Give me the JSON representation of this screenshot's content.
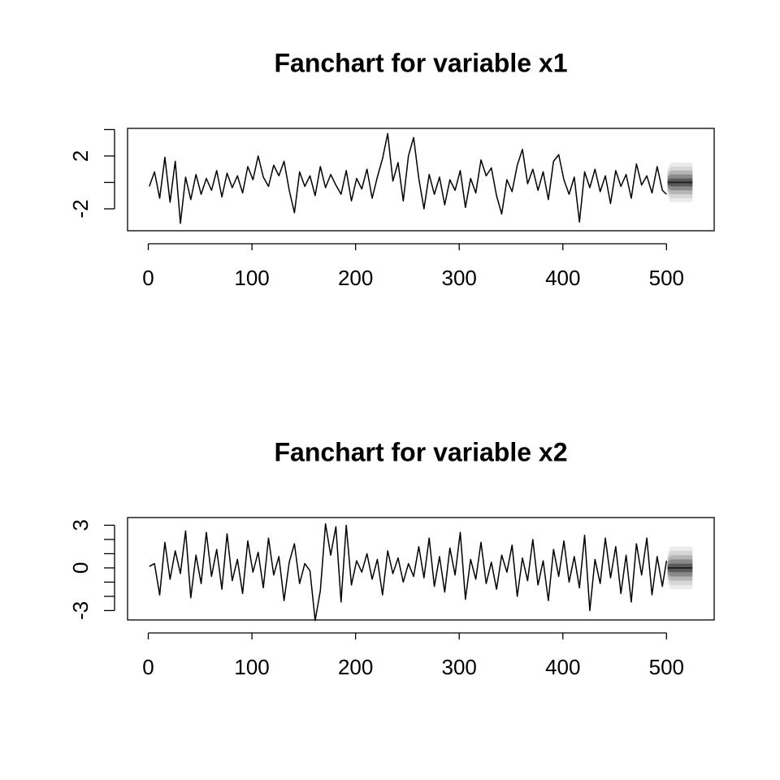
{
  "chart_data": [
    {
      "type": "fanchart",
      "title": "Fanchart for variable x1",
      "x": [
        1,
        6,
        11,
        16,
        21,
        26,
        31,
        36,
        41,
        46,
        51,
        56,
        61,
        66,
        71,
        76,
        81,
        86,
        91,
        96,
        101,
        106,
        111,
        116,
        121,
        126,
        131,
        136,
        141,
        146,
        151,
        156,
        161,
        166,
        171,
        176,
        181,
        186,
        191,
        196,
        201,
        206,
        211,
        216,
        221,
        226,
        231,
        236,
        241,
        246,
        251,
        256,
        261,
        266,
        271,
        276,
        281,
        286,
        291,
        296,
        301,
        306,
        311,
        316,
        321,
        326,
        331,
        336,
        341,
        346,
        351,
        356,
        361,
        366,
        371,
        376,
        381,
        386,
        391,
        396,
        401,
        406,
        411,
        416,
        421,
        426,
        431,
        436,
        441,
        446,
        451,
        456,
        461,
        466,
        471,
        476,
        481,
        486,
        491,
        496,
        500
      ],
      "series": [
        {
          "color": "#000000",
          "values": [
            -0.3,
            0.8,
            -1.2,
            1.9,
            -1.5,
            1.6,
            -3.1,
            0.4,
            -1.3,
            0.6,
            -0.9,
            0.3,
            -0.6,
            0.9,
            -1.1,
            0.7,
            -0.4,
            0.5,
            -0.8,
            1.2,
            0.2,
            2.0,
            0.4,
            -0.3,
            1.3,
            0.5,
            1.6,
            -0.6,
            -2.3,
            0.8,
            -0.3,
            0.5,
            -1.0,
            1.2,
            -0.4,
            0.6,
            -0.2,
            -0.9,
            0.9,
            -1.4,
            0.3,
            -0.5,
            1.0,
            -1.2,
            0.4,
            1.8,
            3.7,
            0.1,
            1.5,
            -1.4,
            2.0,
            3.4,
            0.3,
            -2.0,
            0.6,
            -0.9,
            0.4,
            -1.7,
            0.2,
            -0.6,
            0.9,
            -1.9,
            0.3,
            -0.8,
            1.7,
            0.5,
            1.1,
            -1.0,
            -2.4,
            0.2,
            -0.7,
            1.3,
            2.5,
            -0.1,
            1.0,
            -0.6,
            0.8,
            -1.3,
            1.6,
            2.1,
            0.2,
            -0.9,
            0.4,
            -3.0,
            0.8,
            -0.4,
            1.0,
            -0.7,
            0.5,
            -1.6,
            0.9,
            -0.3,
            0.6,
            -1.2,
            1.4,
            -0.2,
            0.5,
            -0.8,
            1.2,
            -0.6,
            -0.9
          ]
        }
      ],
      "fan": {
        "x": [
          501,
          504,
          525
        ],
        "median": [
          0,
          0,
          0
        ],
        "median_color": "#222222",
        "colors": [
          "#ebebeb",
          "#d6d6d6",
          "#b5b5b5",
          "#8a8a8a",
          "#5a5a5a"
        ],
        "bands": [
          {
            "lower": [
              -1.0,
              -1.5,
              -1.5
            ],
            "upper": [
              1.0,
              1.5,
              1.5
            ]
          },
          {
            "lower": [
              -0.8,
              -1.2,
              -1.2
            ],
            "upper": [
              0.8,
              1.2,
              1.2
            ]
          },
          {
            "lower": [
              -0.6,
              -0.9,
              -0.9
            ],
            "upper": [
              0.6,
              0.9,
              0.9
            ]
          },
          {
            "lower": [
              -0.4,
              -0.6,
              -0.6
            ],
            "upper": [
              0.4,
              0.6,
              0.6
            ]
          },
          {
            "lower": [
              -0.2,
              -0.3,
              -0.3
            ],
            "upper": [
              0.2,
              0.3,
              0.3
            ]
          }
        ]
      },
      "xlim": [
        -20,
        546
      ],
      "xticks": [
        0,
        100,
        200,
        300,
        400,
        500
      ],
      "ylim": [
        -3.66,
        4.09
      ],
      "yticks": [
        -2,
        2
      ],
      "minor_yticks": [
        0,
        4
      ]
    },
    {
      "type": "fanchart",
      "title": "Fanchart for variable x2",
      "x": [
        1,
        6,
        11,
        16,
        21,
        26,
        31,
        36,
        41,
        46,
        51,
        56,
        61,
        66,
        71,
        76,
        81,
        86,
        91,
        96,
        101,
        106,
        111,
        116,
        121,
        126,
        131,
        136,
        141,
        146,
        151,
        156,
        161,
        166,
        171,
        176,
        181,
        186,
        191,
        196,
        201,
        206,
        211,
        216,
        221,
        226,
        231,
        236,
        241,
        246,
        251,
        256,
        261,
        266,
        271,
        276,
        281,
        286,
        291,
        296,
        301,
        306,
        311,
        316,
        321,
        326,
        331,
        336,
        341,
        346,
        351,
        356,
        361,
        366,
        371,
        376,
        381,
        386,
        391,
        396,
        401,
        406,
        411,
        416,
        421,
        426,
        431,
        436,
        441,
        446,
        451,
        456,
        461,
        466,
        471,
        476,
        481,
        486,
        491,
        496,
        500
      ],
      "series": [
        {
          "color": "#000000",
          "values": [
            0.1,
            0.3,
            -1.9,
            1.8,
            -0.8,
            1.2,
            -0.4,
            2.6,
            -2.1,
            0.9,
            -1.1,
            2.5,
            -0.6,
            1.3,
            -1.5,
            2.4,
            -0.9,
            0.6,
            -1.8,
            1.9,
            -0.3,
            1.1,
            -1.4,
            2.1,
            -0.5,
            0.8,
            -2.3,
            0.4,
            1.7,
            -1.1,
            0.3,
            -0.2,
            -3.7,
            -1.6,
            3.1,
            0.9,
            2.9,
            -2.4,
            3.0,
            -1.2,
            0.5,
            -0.3,
            1.0,
            -0.8,
            0.6,
            -1.9,
            1.2,
            -0.4,
            0.7,
            -1.0,
            0.3,
            -0.6,
            1.5,
            -0.7,
            2.1,
            -1.3,
            0.8,
            -1.7,
            1.4,
            -0.5,
            2.5,
            -2.2,
            0.6,
            -0.8,
            1.8,
            -1.1,
            0.4,
            -1.5,
            0.9,
            -0.3,
            1.6,
            -2.0,
            0.7,
            -0.9,
            2.0,
            -1.2,
            0.5,
            -2.3,
            1.3,
            -0.6,
            1.9,
            -1.0,
            0.8,
            -1.4,
            2.3,
            -3.0,
            0.6,
            -1.1,
            2.1,
            -0.7,
            1.5,
            -1.8,
            0.9,
            -2.4,
            1.7,
            -0.5,
            2.1,
            -1.9,
            0.8,
            -1.3,
            0.5
          ]
        }
      ],
      "fan": {
        "x": [
          501,
          504,
          525
        ],
        "median": [
          0,
          0,
          0
        ],
        "median_color": "#222222",
        "colors": [
          "#ebebeb",
          "#d6d6d6",
          "#b5b5b5",
          "#8a8a8a",
          "#5a5a5a"
        ],
        "bands": [
          {
            "lower": [
              -1.0,
              -1.5,
              -1.5
            ],
            "upper": [
              1.0,
              1.5,
              1.5
            ]
          },
          {
            "lower": [
              -0.8,
              -1.2,
              -1.2
            ],
            "upper": [
              0.8,
              1.2,
              1.2
            ]
          },
          {
            "lower": [
              -0.6,
              -0.9,
              -0.9
            ],
            "upper": [
              0.6,
              0.9,
              0.9
            ]
          },
          {
            "lower": [
              -0.4,
              -0.6,
              -0.6
            ],
            "upper": [
              0.4,
              0.6,
              0.6
            ]
          },
          {
            "lower": [
              -0.2,
              -0.3,
              -0.3
            ],
            "upper": [
              0.2,
              0.3,
              0.3
            ]
          }
        ]
      },
      "xlim": [
        -20,
        546
      ],
      "xticks": [
        0,
        100,
        200,
        300,
        400,
        500
      ],
      "ylim": [
        -3.66,
        3.54
      ],
      "yticks": [
        -3,
        0,
        3
      ],
      "minor_yticks": [
        -2,
        -1,
        1,
        2
      ]
    }
  ]
}
